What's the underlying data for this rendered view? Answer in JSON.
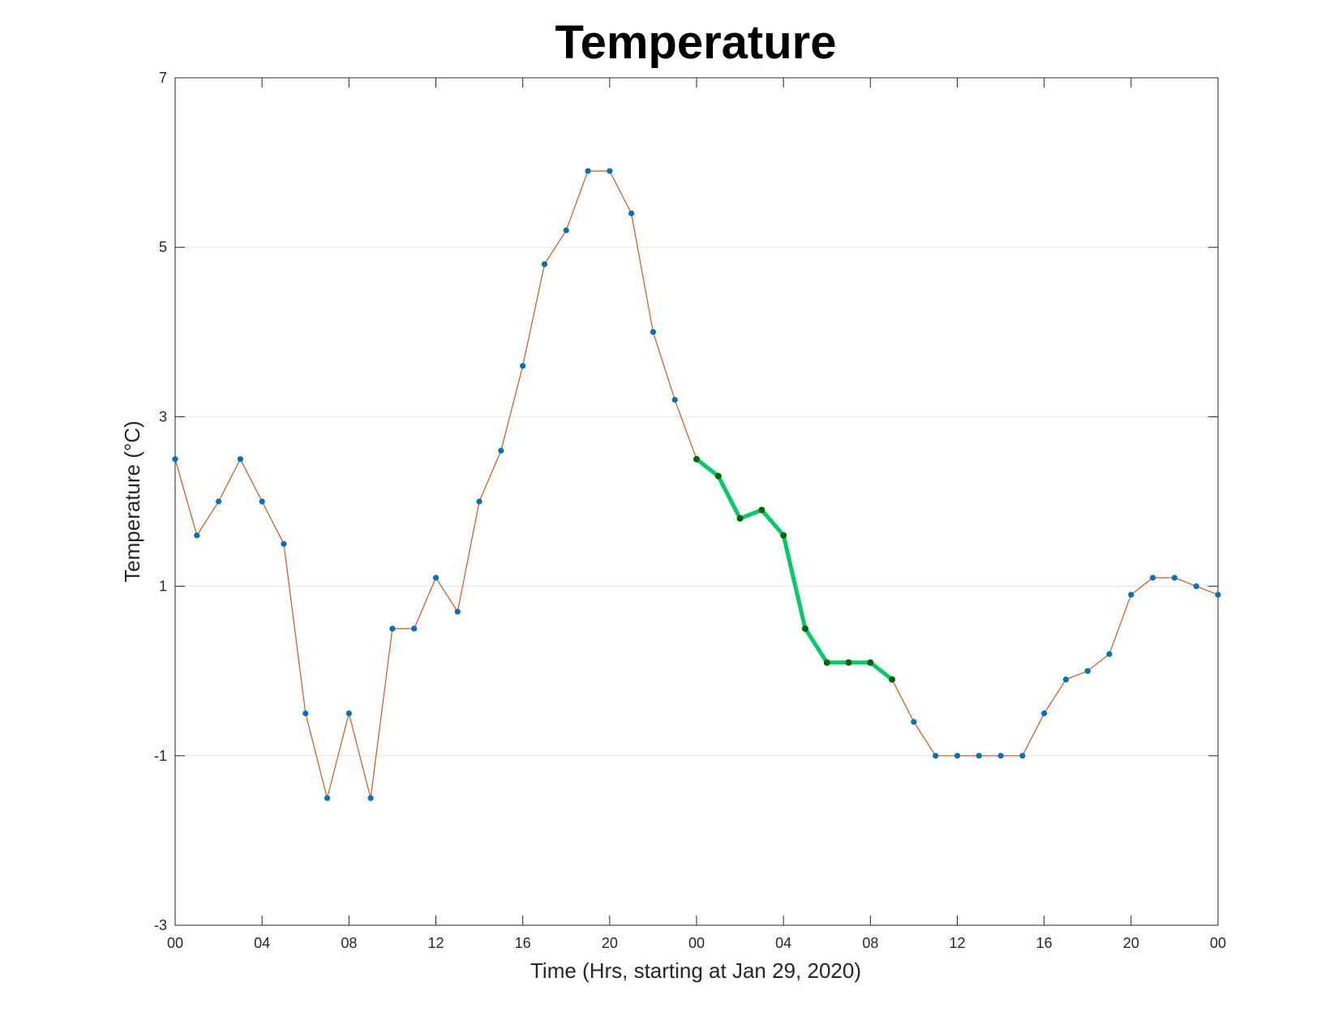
{
  "chart_data": {
    "type": "line",
    "title": "Temperature",
    "xlabel": "Time (Hrs, starting at Jan 29, 2020)",
    "ylabel": "Temperature (°C)",
    "xlim": [
      0,
      48
    ],
    "ylim": [
      -3,
      7
    ],
    "x_ticks": [
      0,
      4,
      8,
      12,
      16,
      20,
      24,
      28,
      32,
      36,
      40,
      44,
      48
    ],
    "x_tick_labels": [
      "00",
      "04",
      "08",
      "12",
      "16",
      "20",
      "00",
      "04",
      "08",
      "12",
      "16",
      "20",
      "00"
    ],
    "y_ticks": [
      -3,
      -1,
      1,
      3,
      5,
      7
    ],
    "y_tick_labels": [
      "-3",
      "-1",
      "1",
      "3",
      "5",
      "7"
    ],
    "grid": "horizontal",
    "series": [
      {
        "color": "#D95319",
        "marker_color": "#0072BD",
        "x": [
          0,
          1,
          2,
          3,
          4,
          5,
          6,
          7,
          8,
          9,
          10,
          11,
          12,
          13,
          14,
          15,
          16,
          17,
          18,
          19,
          20,
          21,
          22,
          23,
          24,
          25,
          26,
          27,
          28,
          29,
          30,
          31,
          32,
          33,
          34,
          35,
          36,
          37,
          38,
          39,
          40,
          41,
          42,
          43,
          44,
          45,
          46,
          47,
          48
        ],
        "values": [
          2.5,
          1.6,
          2.0,
          2.5,
          2.0,
          1.5,
          -0.5,
          -1.5,
          -0.5,
          -1.5,
          0.5,
          0.5,
          1.1,
          0.7,
          2.0,
          2.6,
          3.6,
          4.8,
          5.2,
          5.9,
          5.9,
          5.4,
          4.0,
          3.2,
          2.5,
          2.3,
          1.8,
          1.9,
          1.6,
          0.5,
          0.1,
          0.1,
          0.1,
          -0.1,
          -0.6,
          -1.0,
          -1.0,
          -1.0,
          -1.0,
          -1.0,
          -0.5,
          -0.1,
          0.0,
          0.2,
          0.9,
          1.1,
          1.1,
          1.0,
          0.9
        ]
      },
      {
        "color": "#00CC66",
        "marker_color": "#006600",
        "x": [
          24,
          25,
          26,
          27,
          28,
          29,
          30,
          31,
          32,
          33
        ],
        "values": [
          2.5,
          2.3,
          1.8,
          1.9,
          1.6,
          0.5,
          0.1,
          0.1,
          0.1,
          -0.1
        ]
      }
    ]
  }
}
